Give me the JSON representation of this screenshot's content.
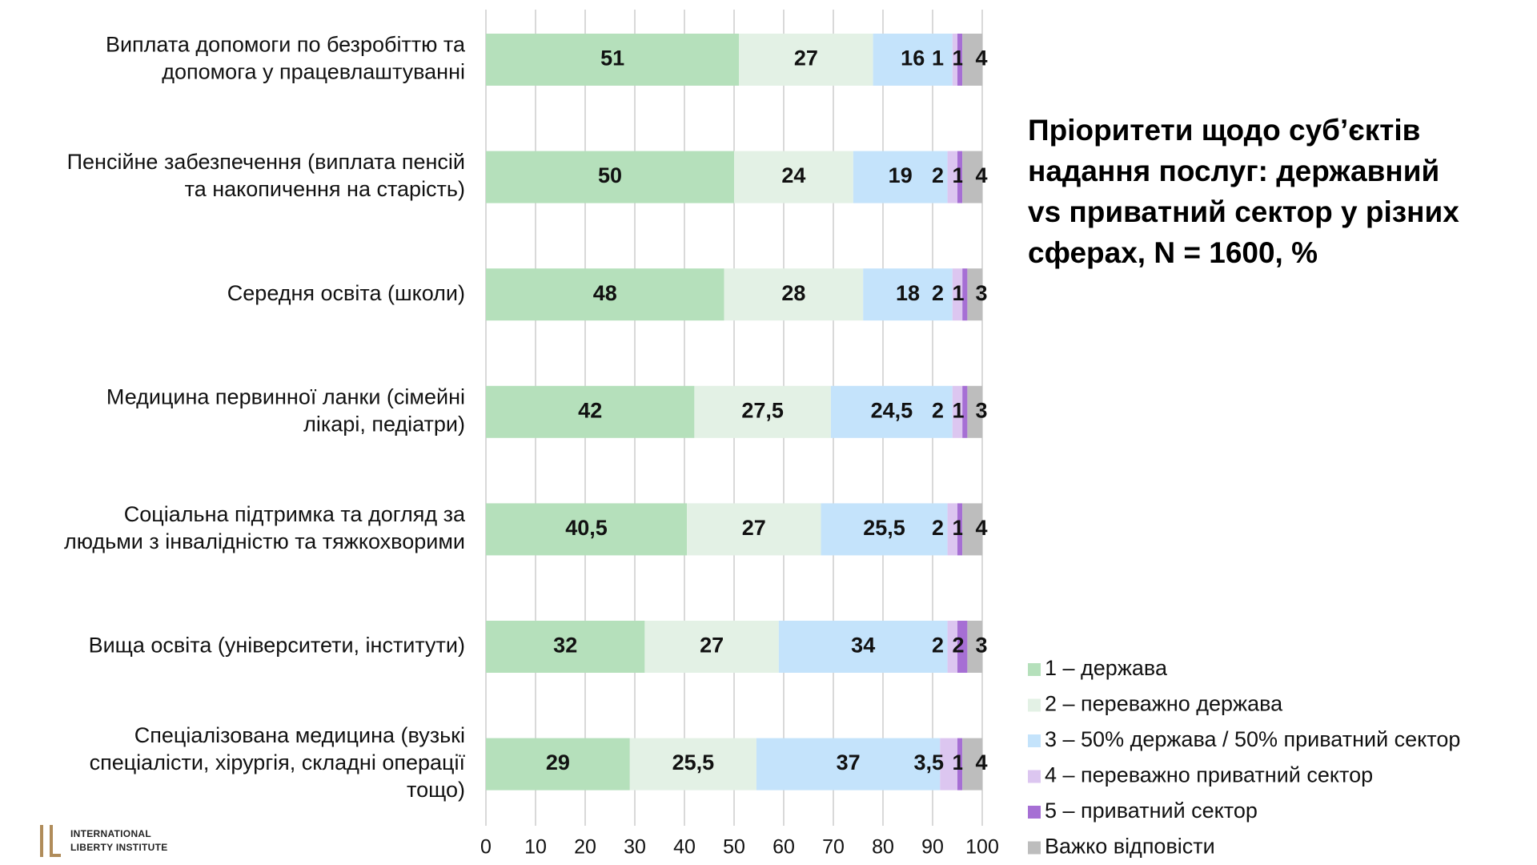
{
  "chart_data": {
    "type": "stacked-bar-horizontal",
    "title": [
      "Пріоритети щодо суб’єктів",
      "надання послуг: державний",
      "vs приватний сектор у різних",
      "сферах, N = 1600, %"
    ],
    "categories": [
      [
        "Виплата допомоги по безробіттю та",
        "допомога у працевлаштуванні"
      ],
      [
        "Пенсійне забезпечення (виплата пенсій",
        "та накопичення на старість)"
      ],
      [
        "Середня освіта (школи)"
      ],
      [
        "Медицина первинної ланки (сімейні",
        "лікарі, педіатри)"
      ],
      [
        "Соціальна підтримка та догляд за",
        "людьми з інвалідністю та тяжкохворими"
      ],
      [
        "Вища освіта (університети, інститути)"
      ],
      [
        "Спеціалізована медицина (вузькі",
        "спеціалісти, хірургія, складні операції",
        "тощо)"
      ]
    ],
    "series": [
      {
        "name": "1 – держава",
        "color": "#b5e0bb",
        "values": [
          51,
          50,
          48,
          42,
          40.5,
          32,
          29
        ],
        "value_labels": [
          "51",
          "50",
          "48",
          "42",
          "40,5",
          "32",
          "29"
        ]
      },
      {
        "name": "2 – переважно держава",
        "color": "#e3f1e5",
        "values": [
          27,
          24,
          28,
          27.5,
          27,
          27,
          25.5
        ],
        "value_labels": [
          "27",
          "24",
          "28",
          "27,5",
          "27",
          "27",
          "25,5"
        ]
      },
      {
        "name": "3 – 50% держава / 50% приватний сектор",
        "color": "#c4e3fb",
        "values": [
          16,
          19,
          18,
          24.5,
          25.5,
          34,
          37
        ],
        "value_labels": [
          "16",
          "19",
          "18",
          "24,5",
          "25,5",
          "34",
          "37"
        ]
      },
      {
        "name": "4 – переважно приватний сектор",
        "color": "#dcc6f0",
        "values": [
          1,
          2,
          2,
          2,
          2,
          2,
          3.5
        ],
        "value_labels": [
          "1",
          "2",
          "2",
          "2",
          "2",
          "2",
          "3,5"
        ]
      },
      {
        "name": "5 – приватний сектор",
        "color": "#a66fd4",
        "values": [
          1,
          1,
          1,
          1,
          1,
          2,
          1
        ]
      },
      {
        "name": "Важко відповісти",
        "color": "#bdbdbd",
        "values": [
          4,
          4,
          3,
          3,
          4,
          3,
          4
        ]
      }
    ],
    "xlim": [
      0,
      100
    ],
    "xticks": [
      0,
      10,
      20,
      30,
      40,
      50,
      60,
      70,
      80,
      90,
      100
    ],
    "grid": true,
    "legend": "bottom-right"
  },
  "logo": [
    "INTERNATIONAL",
    "LIBERTY INSTITUTE"
  ]
}
